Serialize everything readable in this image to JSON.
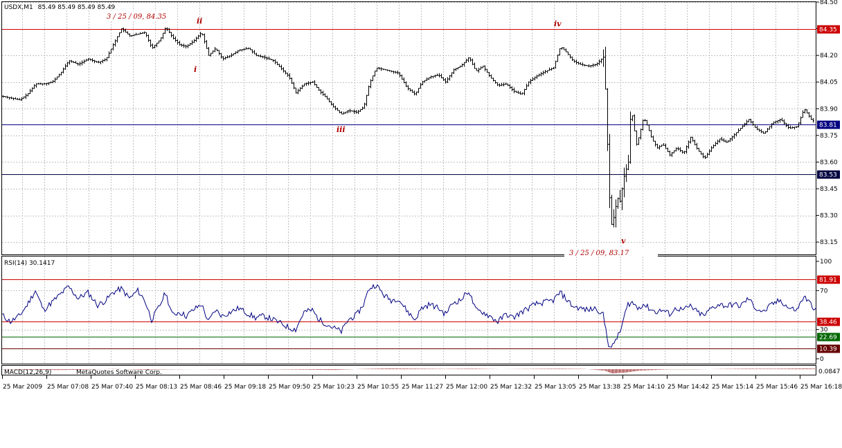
{
  "chart_data": [
    {
      "type": "candlestick",
      "title": "USDX,M1",
      "ohlc_readout": "85.49 85.49 85.49 85.49",
      "ylim": [
        83.1,
        84.5
      ],
      "yticks": [
        "84.50",
        "84.35",
        "84.20",
        "84.05",
        "83.90",
        "83.75",
        "83.60",
        "83.45",
        "83.30",
        "83.15"
      ],
      "grid": true,
      "price_path": [
        [
          0,
          83.97
        ],
        [
          12,
          83.96
        ],
        [
          25,
          83.95
        ],
        [
          36,
          83.98
        ],
        [
          48,
          84.04
        ],
        [
          60,
          84.04
        ],
        [
          72,
          84.05
        ],
        [
          84,
          84.1
        ],
        [
          96,
          84.17
        ],
        [
          110,
          84.15
        ],
        [
          124,
          84.18
        ],
        [
          138,
          84.16
        ],
        [
          150,
          84.18
        ],
        [
          160,
          84.26
        ],
        [
          172,
          84.35
        ],
        [
          184,
          84.31
        ],
        [
          196,
          84.32
        ],
        [
          206,
          84.33
        ],
        [
          216,
          84.24
        ],
        [
          228,
          84.29
        ],
        [
          236,
          84.36
        ],
        [
          246,
          84.3
        ],
        [
          256,
          84.26
        ],
        [
          266,
          84.25
        ],
        [
          276,
          84.28
        ],
        [
          288,
          84.33
        ],
        [
          298,
          84.2
        ],
        [
          308,
          84.24
        ],
        [
          318,
          84.18
        ],
        [
          330,
          84.2
        ],
        [
          342,
          84.23
        ],
        [
          356,
          84.24
        ],
        [
          366,
          84.2
        ],
        [
          378,
          84.19
        ],
        [
          392,
          84.17
        ],
        [
          404,
          84.12
        ],
        [
          414,
          84.08
        ],
        [
          424,
          83.99
        ],
        [
          436,
          84.04
        ],
        [
          448,
          84.05
        ],
        [
          458,
          84.0
        ],
        [
          468,
          83.96
        ],
        [
          478,
          83.91
        ],
        [
          490,
          83.87
        ],
        [
          500,
          83.89
        ],
        [
          512,
          83.88
        ],
        [
          522,
          83.91
        ],
        [
          530,
          84.04
        ],
        [
          540,
          84.13
        ],
        [
          552,
          84.12
        ],
        [
          562,
          84.11
        ],
        [
          572,
          84.1
        ],
        [
          584,
          84.02
        ],
        [
          596,
          83.98
        ],
        [
          606,
          84.05
        ],
        [
          618,
          84.08
        ],
        [
          630,
          84.09
        ],
        [
          640,
          84.05
        ],
        [
          652,
          84.12
        ],
        [
          662,
          84.14
        ],
        [
          674,
          84.19
        ],
        [
          684,
          84.11
        ],
        [
          694,
          84.14
        ],
        [
          704,
          84.08
        ],
        [
          716,
          84.03
        ],
        [
          728,
          84.04
        ],
        [
          738,
          84.0
        ],
        [
          750,
          83.98
        ],
        [
          760,
          84.05
        ],
        [
          770,
          84.08
        ],
        [
          784,
          84.11
        ],
        [
          796,
          84.13
        ],
        [
          806,
          84.25
        ],
        [
          814,
          84.22
        ],
        [
          824,
          84.17
        ],
        [
          834,
          84.15
        ],
        [
          846,
          84.14
        ],
        [
          858,
          84.15
        ],
        [
          868,
          84.19
        ],
        [
          872,
          83.95
        ],
        [
          876,
          83.45
        ],
        [
          880,
          83.25
        ],
        [
          884,
          83.3
        ],
        [
          888,
          83.4
        ],
        [
          892,
          83.38
        ],
        [
          898,
          83.52
        ],
        [
          904,
          83.6
        ],
        [
          908,
          83.92
        ],
        [
          912,
          83.8
        ],
        [
          916,
          83.7
        ],
        [
          920,
          83.75
        ],
        [
          926,
          83.85
        ],
        [
          932,
          83.8
        ],
        [
          938,
          83.73
        ],
        [
          946,
          83.68
        ],
        [
          954,
          83.7
        ],
        [
          964,
          83.64
        ],
        [
          974,
          83.68
        ],
        [
          984,
          83.65
        ],
        [
          994,
          83.74
        ],
        [
          1004,
          83.67
        ],
        [
          1014,
          83.62
        ],
        [
          1024,
          83.68
        ],
        [
          1036,
          83.73
        ],
        [
          1046,
          83.71
        ],
        [
          1056,
          83.75
        ],
        [
          1066,
          83.79
        ],
        [
          1078,
          83.84
        ],
        [
          1088,
          83.79
        ],
        [
          1100,
          83.76
        ],
        [
          1112,
          83.82
        ],
        [
          1124,
          83.84
        ],
        [
          1136,
          83.79
        ],
        [
          1148,
          83.8
        ],
        [
          1158,
          83.9
        ],
        [
          1168,
          83.84
        ],
        [
          1176,
          83.82
        ]
      ],
      "horizontal_lines": [
        {
          "value": 84.35,
          "label": "84.35",
          "color": "#cc0000"
        },
        {
          "value": 83.81,
          "label": "83.81",
          "color": "#000080"
        },
        {
          "value": 83.53,
          "label": "83.53",
          "color": "#000040"
        }
      ],
      "annotations": {
        "high": "3 / 25 / 09,  84.35",
        "low": "3 / 25 / 09,  83.17",
        "waves": [
          "i",
          "ii",
          "iii",
          "iv",
          "v"
        ]
      }
    },
    {
      "type": "line",
      "title": "RSI(14) 30.1417",
      "ylim": [
        0,
        100
      ],
      "yticks": [
        "100",
        "70",
        "30",
        "0"
      ],
      "levels": [
        {
          "value": 81.91,
          "label": "81.91",
          "color": "#cc0000"
        },
        {
          "value": 38.46,
          "label": "38.46",
          "color": "#cc0000"
        },
        {
          "value": 22.69,
          "label": "22.69",
          "color": "#006600"
        },
        {
          "value": 10.39,
          "label": "10.39",
          "color": "#660000"
        }
      ],
      "values": [
        [
          0,
          45
        ],
        [
          12,
          38
        ],
        [
          25,
          44
        ],
        [
          36,
          55
        ],
        [
          48,
          70
        ],
        [
          60,
          50
        ],
        [
          72,
          58
        ],
        [
          84,
          66
        ],
        [
          96,
          74
        ],
        [
          110,
          62
        ],
        [
          124,
          68
        ],
        [
          138,
          55
        ],
        [
          150,
          60
        ],
        [
          160,
          68
        ],
        [
          172,
          72
        ],
        [
          184,
          62
        ],
        [
          196,
          70
        ],
        [
          206,
          60
        ],
        [
          216,
          40
        ],
        [
          228,
          55
        ],
        [
          236,
          68
        ],
        [
          246,
          45
        ],
        [
          256,
          48
        ],
        [
          266,
          44
        ],
        [
          276,
          50
        ],
        [
          288,
          56
        ],
        [
          298,
          38
        ],
        [
          308,
          50
        ],
        [
          318,
          44
        ],
        [
          330,
          48
        ],
        [
          342,
          52
        ],
        [
          356,
          46
        ],
        [
          366,
          42
        ],
        [
          378,
          44
        ],
        [
          392,
          40
        ],
        [
          404,
          36
        ],
        [
          414,
          32
        ],
        [
          424,
          30
        ],
        [
          436,
          48
        ],
        [
          448,
          50
        ],
        [
          458,
          40
        ],
        [
          468,
          36
        ],
        [
          478,
          32
        ],
        [
          490,
          28
        ],
        [
          500,
          40
        ],
        [
          512,
          45
        ],
        [
          522,
          56
        ],
        [
          530,
          72
        ],
        [
          540,
          76
        ],
        [
          552,
          65
        ],
        [
          562,
          60
        ],
        [
          572,
          62
        ],
        [
          584,
          50
        ],
        [
          596,
          40
        ],
        [
          606,
          52
        ],
        [
          618,
          56
        ],
        [
          630,
          52
        ],
        [
          640,
          46
        ],
        [
          652,
          58
        ],
        [
          662,
          60
        ],
        [
          674,
          70
        ],
        [
          684,
          50
        ],
        [
          694,
          48
        ],
        [
          704,
          44
        ],
        [
          716,
          38
        ],
        [
          728,
          46
        ],
        [
          738,
          42
        ],
        [
          750,
          48
        ],
        [
          760,
          52
        ],
        [
          770,
          56
        ],
        [
          784,
          58
        ],
        [
          796,
          60
        ],
        [
          806,
          68
        ],
        [
          814,
          62
        ],
        [
          824,
          54
        ],
        [
          834,
          52
        ],
        [
          846,
          50
        ],
        [
          858,
          52
        ],
        [
          868,
          45
        ],
        [
          872,
          30
        ],
        [
          876,
          15
        ],
        [
          880,
          10
        ],
        [
          886,
          20
        ],
        [
          892,
          26
        ],
        [
          898,
          42
        ],
        [
          904,
          56
        ],
        [
          910,
          58
        ],
        [
          918,
          52
        ],
        [
          926,
          56
        ],
        [
          934,
          52
        ],
        [
          944,
          48
        ],
        [
          954,
          50
        ],
        [
          964,
          46
        ],
        [
          974,
          52
        ],
        [
          984,
          50
        ],
        [
          994,
          54
        ],
        [
          1004,
          48
        ],
        [
          1014,
          44
        ],
        [
          1024,
          52
        ],
        [
          1036,
          56
        ],
        [
          1046,
          54
        ],
        [
          1056,
          56
        ],
        [
          1066,
          54
        ],
        [
          1078,
          62
        ],
        [
          1088,
          52
        ],
        [
          1100,
          48
        ],
        [
          1112,
          56
        ],
        [
          1124,
          60
        ],
        [
          1136,
          52
        ],
        [
          1148,
          50
        ],
        [
          1158,
          64
        ],
        [
          1168,
          56
        ],
        [
          1176,
          50
        ]
      ]
    },
    {
      "type": "bar",
      "title": "MACD(12,26,9)",
      "notice": "MetaQuotes Software Corp.",
      "value_label": "0.0847",
      "ylim": [
        -0.2,
        0.1
      ],
      "values": [
        [
          0,
          -0.01
        ],
        [
          40,
          -0.02
        ],
        [
          80,
          -0.03
        ],
        [
          120,
          -0.02
        ],
        [
          160,
          0.01
        ],
        [
          200,
          -0.02
        ],
        [
          240,
          -0.01
        ],
        [
          280,
          0.0
        ],
        [
          320,
          -0.01
        ],
        [
          360,
          0.0
        ],
        [
          400,
          -0.01
        ],
        [
          440,
          -0.02
        ],
        [
          480,
          -0.03
        ],
        [
          520,
          0.01
        ],
        [
          560,
          0.03
        ],
        [
          600,
          0.02
        ],
        [
          640,
          0.01
        ],
        [
          680,
          0.02
        ],
        [
          720,
          0.0
        ],
        [
          760,
          0.01
        ],
        [
          800,
          0.02
        ],
        [
          840,
          0.01
        ],
        [
          870,
          -0.05
        ],
        [
          880,
          -0.15
        ],
        [
          900,
          -0.12
        ],
        [
          920,
          -0.05
        ],
        [
          960,
          -0.01
        ],
        [
          1000,
          -0.01
        ],
        [
          1040,
          0.01
        ],
        [
          1080,
          0.02
        ],
        [
          1120,
          0.02
        ],
        [
          1160,
          0.03
        ],
        [
          1176,
          0.02
        ]
      ]
    }
  ],
  "time_axis": [
    "25 Mar 2009",
    "25 Mar 07:08",
    "25 Mar 07:40",
    "25 Mar 08:13",
    "25 Mar 08:46",
    "25 Mar 09:18",
    "25 Mar 09:50",
    "25 Mar 10:23",
    "25 Mar 10:55",
    "25 Mar 11:27",
    "25 Mar 12:00",
    "25 Mar 12:32",
    "25 Mar 13:05",
    "25 Mar 13:38",
    "25 Mar 14:10",
    "25 Mar 14:42",
    "25 Mar 15:14",
    "25 Mar 15:46",
    "25 Mar 16:18"
  ],
  "colors": {
    "grid": "#c0c0c0",
    "candles": "#000000",
    "rsi": "#000080",
    "macd": "#8b0000",
    "badge_red": "#cc0000",
    "badge_navy": "#000080",
    "badge_green": "#006600",
    "badge_maroon": "#660000"
  }
}
